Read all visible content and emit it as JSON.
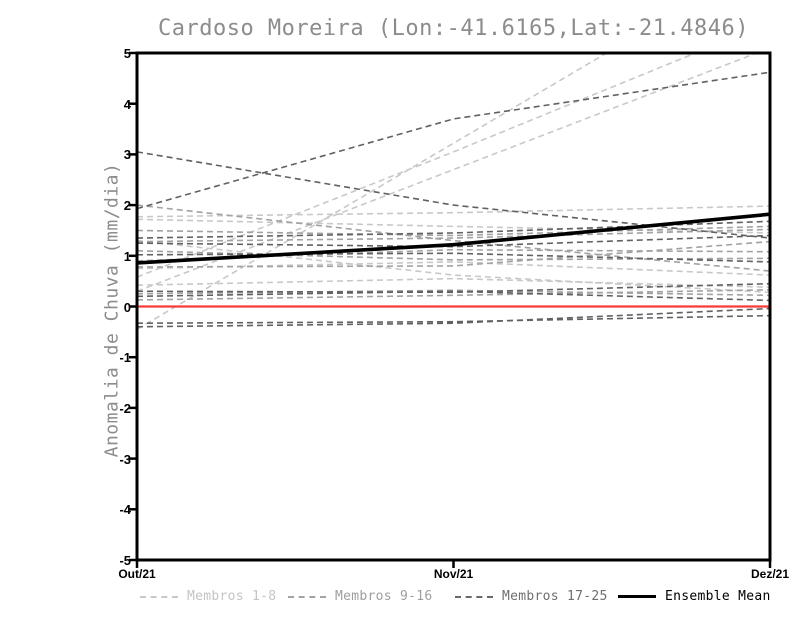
{
  "chart_data": {
    "type": "line",
    "title": "Cardoso Moreira (Lon:-41.6165,Lat:-21.4846)",
    "ylabel": "Anomalia de Chuva (mm/dia)",
    "xlabel": "",
    "x_categories": [
      "Out/21",
      "Nov/21",
      "Dez/21"
    ],
    "ylim": [
      -5,
      5
    ],
    "yticks": [
      5,
      4,
      3,
      2,
      1,
      0,
      -1,
      -2,
      -3,
      -4,
      -5
    ],
    "grid": false,
    "legend_position": "bottom",
    "zero_line": {
      "value": 0,
      "color": "#fa3a3a"
    },
    "series_groups": [
      {
        "name": "Membros 1-8",
        "color": "#c8c8c8",
        "line_style": "dashed",
        "members": [
          [
            -0.45,
            3.22,
            6.9
          ],
          [
            0.58,
            3.05,
            5.6
          ],
          [
            0.3,
            2.7,
            5.1
          ],
          [
            1.77,
            1.85,
            1.98
          ],
          [
            1.72,
            1.58,
            1.45
          ],
          [
            0.75,
            0.88,
            0.62
          ],
          [
            0.42,
            0.55,
            0.38
          ],
          [
            1.3,
            0.62,
            0.28
          ]
        ]
      },
      {
        "name": "Membros 9-16",
        "color": "#a2a2a2",
        "line_style": "dashed",
        "members": [
          [
            1.5,
            1.4,
            1.58
          ],
          [
            1.28,
            1.35,
            1.52
          ],
          [
            1.1,
            0.92,
            0.95
          ],
          [
            0.78,
            0.8,
            1.28
          ],
          [
            0.25,
            0.32,
            0.22
          ],
          [
            0.13,
            0.22,
            0.33
          ],
          [
            2.0,
            1.3,
            0.7
          ],
          [
            0.9,
            1.12,
            1.08
          ]
        ]
      },
      {
        "name": "Membros 17-25",
        "color": "#616161",
        "line_style": "dashed",
        "members": [
          [
            3.05,
            2.0,
            1.35
          ],
          [
            1.93,
            3.7,
            4.62
          ],
          [
            1.35,
            1.45,
            1.68
          ],
          [
            1.25,
            1.18,
            1.4
          ],
          [
            1.02,
            1.05,
            0.88
          ],
          [
            0.3,
            0.28,
            0.45
          ],
          [
            0.2,
            0.3,
            0.12
          ],
          [
            -0.33,
            -0.3,
            -0.18
          ],
          [
            -0.4,
            -0.33,
            -0.04
          ]
        ]
      }
    ],
    "ensemble_mean": {
      "name": "Ensemble Mean",
      "color": "#000000",
      "line_style": "solid",
      "values": [
        0.86,
        1.22,
        1.82
      ]
    },
    "legend": {
      "entries": [
        {
          "label": "Membros 1-8",
          "swatch_color": "#c8c8c8",
          "text_color": "#c4c4c4",
          "style": "dashed"
        },
        {
          "label": "Membros 9-16",
          "swatch_color": "#a2a2a2",
          "text_color": "#9e9e9e",
          "style": "dashed"
        },
        {
          "label": "Membros 17-25",
          "swatch_color": "#686868",
          "text_color": "#6e6e6e",
          "style": "dashed"
        },
        {
          "label": "Ensemble Mean",
          "swatch_color": "#000000",
          "text_color": "#000000",
          "style": "solid"
        }
      ]
    }
  }
}
